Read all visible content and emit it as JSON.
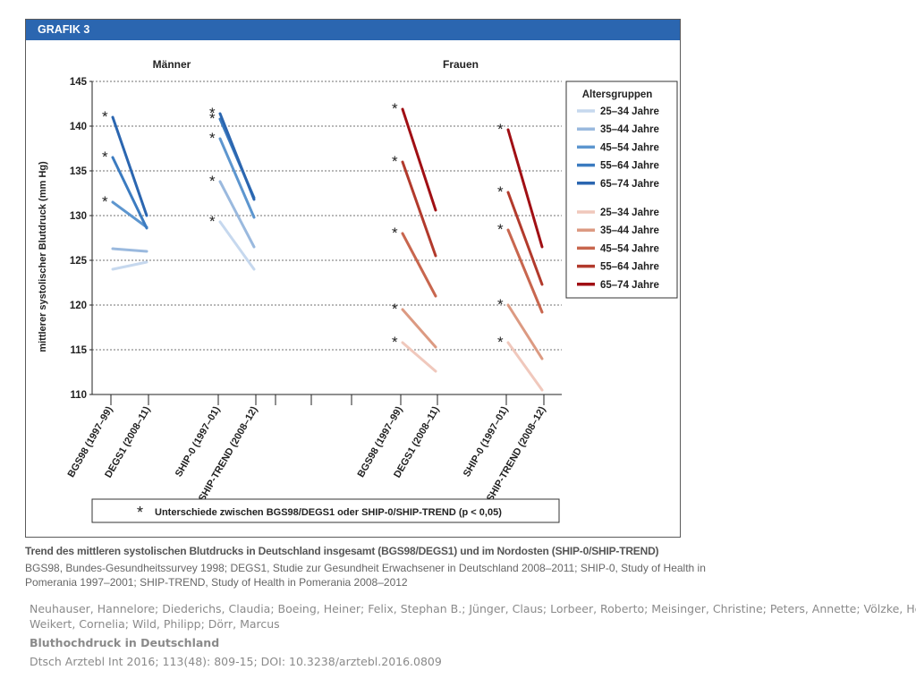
{
  "figure": {
    "header": "GRAFIK 3",
    "footnote": "Unterschiede zwischen BGS98/DEGS1 oder SHIP-0/SHIP-TREND (p < 0,05)",
    "footnote_star": "*"
  },
  "caption": {
    "title": "Trend des mittleren systolischen Blutdrucks in Deutschland insgesamt (BGS98/DEGS1) und im Nordosten (SHIP-0/SHIP-TREND)",
    "line1": "BGS98, Bundes-Gesundheitssurvey 1998; DEGS1, Studie zur Gesundheit Erwachsener in Deutschland 2008–2011; SHIP-0, Study of Health in",
    "line2": "Pomerania 1997–2001; SHIP-TREND, Study of Health in Pomerania 2008–2012"
  },
  "citation": {
    "authors_line1": "Neuhauser, Hannelore; Diederichs, Claudia; Boeing, Heiner; Felix, Stephan B.; Jünger, Claus; Lorbeer, Roberto; Meisinger, Christine; Peters, Annette; Völzke, Henry;",
    "authors_line2": "Weikert, Cornelia; Wild, Philipp; Dörr, Marcus",
    "title": "Bluthochdruck in Deutschland",
    "journal": "Dtsch Arztebl Int 2016; 113(48): 809-15; DOI: 10.3238/arztebl.2016.0809"
  },
  "chart_data": {
    "type": "line",
    "title": "",
    "ylabel": "mittlerer systolischer Blutdruck (mm Hg)",
    "ylim": [
      110,
      145
    ],
    "yticks": [
      110,
      115,
      120,
      125,
      130,
      135,
      140,
      145
    ],
    "grid": true,
    "panels": [
      {
        "name": "Männer",
        "color_scheme": "blue",
        "groups": [
          {
            "categories": [
              "BGS98 (1997–99)",
              "DEGS1 (2008–11)"
            ],
            "series": [
              {
                "name": "25–34 Jahre",
                "values": [
                  124.0,
                  124.8
                ],
                "significant": false
              },
              {
                "name": "35–44 Jahre",
                "values": [
                  126.3,
                  126.0
                ],
                "significant": false
              },
              {
                "name": "45–54 Jahre",
                "values": [
                  131.5,
                  128.7
                ],
                "significant": true
              },
              {
                "name": "55–64 Jahre",
                "values": [
                  136.5,
                  128.6
                ],
                "significant": true
              },
              {
                "name": "65–74 Jahre",
                "values": [
                  141.0,
                  130.0
                ],
                "significant": true
              }
            ]
          },
          {
            "categories": [
              "SHIP-0 (1997–01)",
              "SHIP-TREND (2008–12)"
            ],
            "series": [
              {
                "name": "25–34 Jahre",
                "values": [
                  129.3,
                  124.0
                ],
                "significant": true
              },
              {
                "name": "35–44 Jahre",
                "values": [
                  133.8,
                  126.5
                ],
                "significant": true
              },
              {
                "name": "45–54 Jahre",
                "values": [
                  138.6,
                  129.8
                ],
                "significant": true
              },
              {
                "name": "55–64 Jahre",
                "values": [
                  140.8,
                  132.0
                ],
                "significant": true
              },
              {
                "name": "65–74 Jahre",
                "values": [
                  141.4,
                  131.8
                ],
                "significant": true
              }
            ]
          }
        ]
      },
      {
        "name": "Frauen",
        "color_scheme": "red",
        "groups": [
          {
            "categories": [
              "BGS98 (1997–99)",
              "DEGS1 (2008–11)"
            ],
            "series": [
              {
                "name": "25–34 Jahre",
                "values": [
                  115.8,
                  112.6
                ],
                "significant": true
              },
              {
                "name": "35–44 Jahre",
                "values": [
                  119.5,
                  115.3
                ],
                "significant": true
              },
              {
                "name": "45–54 Jahre",
                "values": [
                  128.0,
                  121.0
                ],
                "significant": true
              },
              {
                "name": "55–64 Jahre",
                "values": [
                  136.0,
                  125.5
                ],
                "significant": true
              },
              {
                "name": "65–74 Jahre",
                "values": [
                  141.9,
                  130.6
                ],
                "significant": true
              }
            ]
          },
          {
            "categories": [
              "SHIP-0 (1997–01)",
              "SHIP-TREND (2008–12)"
            ],
            "series": [
              {
                "name": "25–34 Jahre",
                "values": [
                  115.8,
                  110.5
                ],
                "significant": true
              },
              {
                "name": "35–44 Jahre",
                "values": [
                  120.0,
                  114.0
                ],
                "significant": true
              },
              {
                "name": "45–54 Jahre",
                "values": [
                  128.4,
                  119.2
                ],
                "significant": true
              },
              {
                "name": "55–64 Jahre",
                "values": [
                  132.6,
                  122.3
                ],
                "significant": true
              },
              {
                "name": "65–74 Jahre",
                "values": [
                  139.6,
                  126.5
                ],
                "significant": true
              }
            ]
          }
        ]
      }
    ],
    "legend": {
      "title": "Altersgruppen",
      "placement": "right",
      "entries": [
        {
          "label": "25–34 Jahre",
          "color": "#c6d8ee"
        },
        {
          "label": "35–44 Jahre",
          "color": "#9ab9de"
        },
        {
          "label": "45–54 Jahre",
          "color": "#5d96cf"
        },
        {
          "label": "55–64 Jahre",
          "color": "#3b7bc0"
        },
        {
          "label": "65–74 Jahre",
          "color": "#2b66b0"
        },
        {
          "label": "25–34 Jahre",
          "color": "#f0c8bc"
        },
        {
          "label": "35–44 Jahre",
          "color": "#dc9a82"
        },
        {
          "label": "45–54 Jahre",
          "color": "#c8664e"
        },
        {
          "label": "55–64 Jahre",
          "color": "#b23a2c"
        },
        {
          "label": "65–74 Jahre",
          "color": "#a00f14"
        }
      ]
    },
    "colors": {
      "blue": [
        "#c6d8ee",
        "#9ab9de",
        "#5d96cf",
        "#3b7bc0",
        "#2b66b0"
      ],
      "red": [
        "#f0c8bc",
        "#dc9a82",
        "#c8664e",
        "#b23a2c",
        "#a00f14"
      ]
    }
  }
}
